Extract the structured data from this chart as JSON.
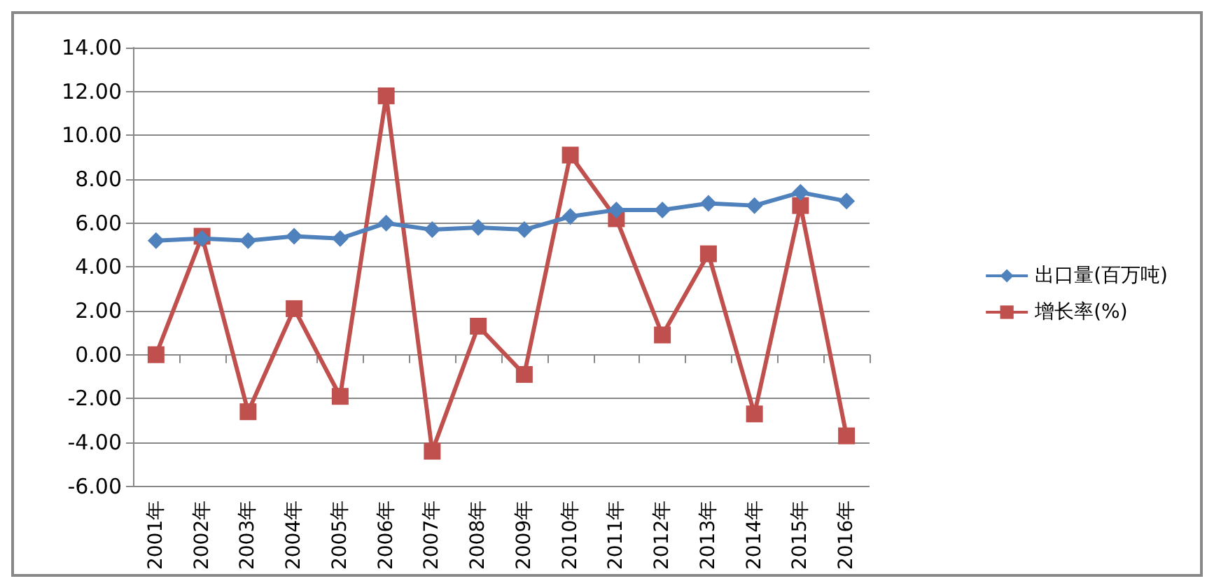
{
  "chart_data": {
    "type": "line",
    "categories": [
      "2001年",
      "2002年",
      "2003年",
      "2004年",
      "2005年",
      "2006年",
      "2007年",
      "2008年",
      "2009年",
      "2010年",
      "2011年",
      "2012年",
      "2013年",
      "2014年",
      "2015年",
      "2016年"
    ],
    "series": [
      {
        "name": "出口量(百万吨)",
        "color": "#4f81bd",
        "marker": "diamond",
        "values": [
          5.2,
          5.3,
          5.2,
          5.4,
          5.3,
          6.0,
          5.7,
          5.8,
          5.7,
          6.3,
          6.6,
          6.6,
          6.9,
          6.8,
          7.4,
          7.0
        ]
      },
      {
        "name": "增长率(%)",
        "color": "#c0504d",
        "marker": "square",
        "values": [
          0.0,
          5.4,
          -2.6,
          2.1,
          -1.9,
          11.8,
          -4.4,
          1.3,
          -0.9,
          9.1,
          6.2,
          0.9,
          4.6,
          -2.7,
          6.8,
          -3.7
        ]
      }
    ],
    "ylim": [
      -6,
      14
    ],
    "yticks": [
      {
        "value": -6,
        "label": "-6.00"
      },
      {
        "value": -4,
        "label": "-4.00"
      },
      {
        "value": -2,
        "label": "-2.00"
      },
      {
        "value": 0,
        "label": "0.00"
      },
      {
        "value": 2,
        "label": "2.00"
      },
      {
        "value": 4,
        "label": "4.00"
      },
      {
        "value": 6,
        "label": "6.00"
      },
      {
        "value": 8,
        "label": "8.00"
      },
      {
        "value": 10,
        "label": "10.00"
      },
      {
        "value": 12,
        "label": "12.00"
      },
      {
        "value": 14,
        "label": "14.00"
      }
    ],
    "grid": "y",
    "legend": "right"
  }
}
